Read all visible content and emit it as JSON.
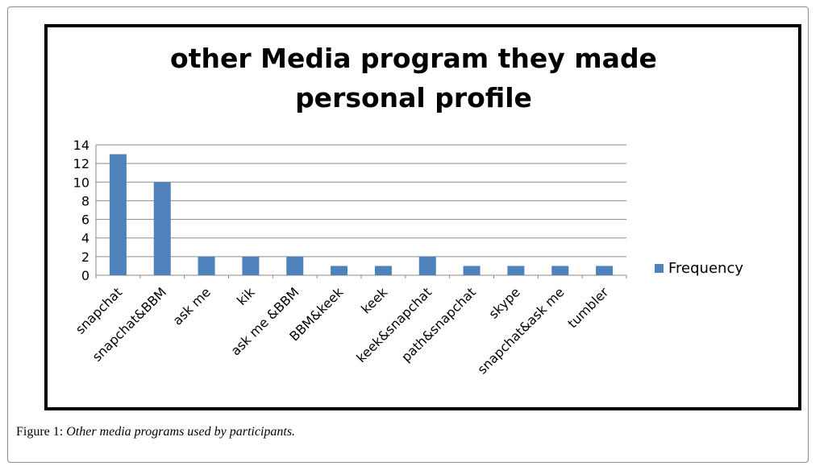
{
  "caption": {
    "label": "Figure 1:",
    "text": "Other media programs used by participants."
  },
  "chart_data": {
    "type": "bar",
    "title_lines": [
      "other Media program they made",
      "personal profile"
    ],
    "categories": [
      "snapchat",
      "snapchat&BBM",
      "ask me",
      "kik",
      "ask me &BBM",
      "BBM&keek",
      "keek",
      "keek&snapchat",
      "path&snapchat",
      "skype",
      "snapchat&ask me",
      "tumbler"
    ],
    "series": [
      {
        "name": "Frequency",
        "values": [
          13,
          10,
          2,
          2,
          2,
          1,
          1,
          2,
          1,
          1,
          1,
          1
        ],
        "color": "#4f81bd"
      }
    ],
    "ylim": [
      0,
      14
    ],
    "yticks": [
      0,
      2,
      4,
      6,
      8,
      10,
      12,
      14
    ],
    "grid": true,
    "legend_position": "right"
  }
}
